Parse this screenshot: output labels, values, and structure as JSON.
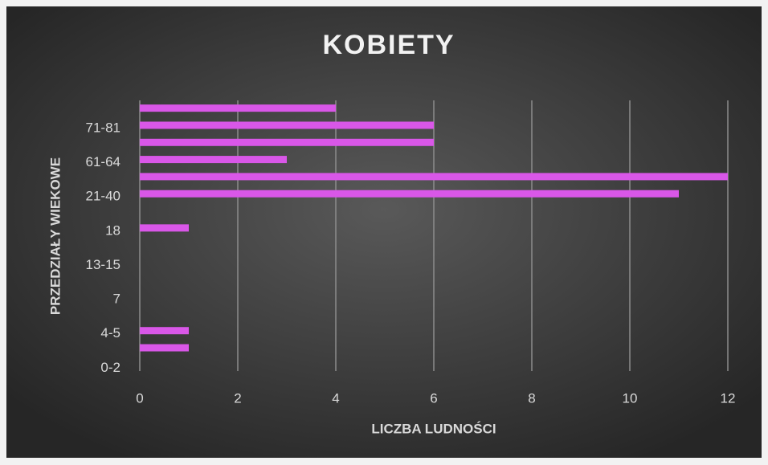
{
  "chart_data": {
    "type": "bar",
    "orientation": "horizontal",
    "title": "KOBIETY",
    "xlabel": "LICZBA LUDNOŚCI",
    "ylabel": "PRZEDZIAŁY WIEKOWE",
    "categories": [
      "0-2",
      null,
      "4-5",
      null,
      "7",
      null,
      "13-15",
      null,
      "18",
      null,
      "21-40",
      null,
      "61-64",
      null,
      "71-81",
      null
    ],
    "values": [
      0,
      1,
      1,
      0,
      0,
      0,
      0,
      0,
      1,
      0,
      11,
      12,
      3,
      6,
      6,
      4
    ],
    "color": "#d957e8",
    "xlim": [
      0,
      12
    ],
    "xticks": [
      0,
      2,
      4,
      6,
      8,
      10,
      12
    ],
    "grid": true
  }
}
